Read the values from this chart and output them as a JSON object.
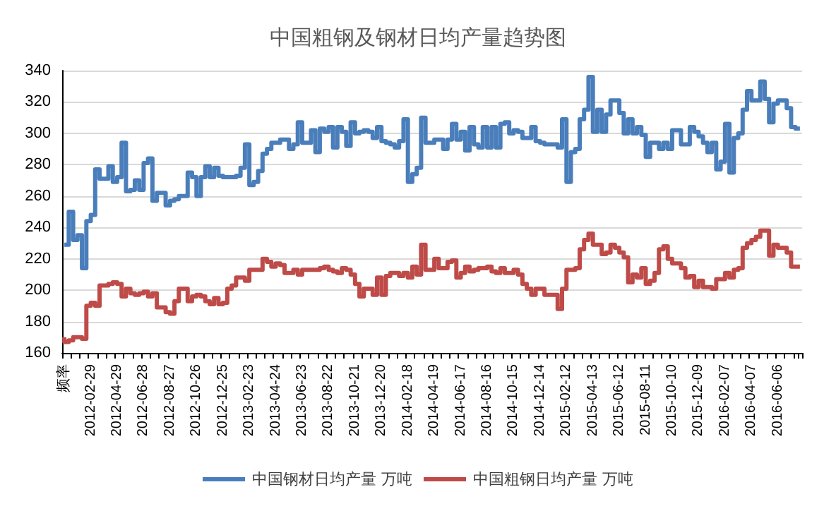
{
  "chart_data": {
    "type": "step",
    "title": "中国粗钢及钢材日均产量趋势图",
    "categories": [
      "频率",
      null,
      null,
      null,
      null,
      null,
      "2012-02-29",
      null,
      null,
      null,
      null,
      null,
      "2012-04-29",
      null,
      null,
      null,
      null,
      null,
      "2012-06-28",
      null,
      null,
      null,
      null,
      null,
      "2012-08-27",
      null,
      null,
      null,
      null,
      null,
      "2012-10-26",
      null,
      null,
      null,
      null,
      null,
      "2012-12-25",
      null,
      null,
      null,
      null,
      null,
      "2013-02-23",
      null,
      null,
      null,
      null,
      null,
      "2013-04-24",
      null,
      null,
      null,
      null,
      null,
      "2013-06-23",
      null,
      null,
      null,
      null,
      null,
      "2013-08-22",
      null,
      null,
      null,
      null,
      null,
      "2013-10-21",
      null,
      null,
      null,
      null,
      null,
      "2013-12-20",
      null,
      null,
      null,
      null,
      null,
      "2014-02-18",
      null,
      null,
      null,
      null,
      null,
      "2014-04-19",
      null,
      null,
      null,
      null,
      null,
      "2014-06-17",
      null,
      null,
      null,
      null,
      null,
      "2014-08-16",
      null,
      null,
      null,
      null,
      null,
      "2014-10-15",
      null,
      null,
      null,
      null,
      null,
      "2014-12-14",
      null,
      null,
      null,
      null,
      null,
      "2015-02-12",
      null,
      null,
      null,
      null,
      null,
      "2015-04-13",
      null,
      null,
      null,
      null,
      null,
      "2015-06-12",
      null,
      null,
      null,
      null,
      null,
      "2015-08-11",
      null,
      null,
      null,
      null,
      null,
      "2015-10-10",
      null,
      null,
      null,
      null,
      null,
      "2015-12-09",
      null,
      null,
      null,
      null,
      null,
      "2016-02-07",
      null,
      null,
      null,
      null,
      null,
      "2016-04-07",
      null,
      null,
      null,
      null,
      null,
      "2016-06-06",
      null,
      null,
      null,
      null,
      null
    ],
    "series": [
      {
        "name": "中国钢材日均产量 万吨",
        "color": "#4a7ebb",
        "values": [
          229,
          229,
          250,
          232,
          235,
          214,
          244,
          248,
          277,
          271,
          271,
          279,
          269,
          272,
          294,
          263,
          264,
          270,
          264,
          281,
          284,
          257,
          262,
          262,
          254,
          257,
          258,
          260,
          260,
          275,
          272,
          260,
          272,
          279,
          272,
          278,
          273,
          272,
          272,
          272,
          273,
          278,
          293,
          267,
          269,
          276,
          287,
          290,
          294,
          294,
          296,
          296,
          290,
          293,
          307,
          294,
          294,
          302,
          288,
          303,
          301,
          304,
          291,
          304,
          301,
          292,
          307,
          300,
          301,
          302,
          301,
          297,
          304,
          295,
          294,
          293,
          291,
          295,
          309,
          269,
          274,
          278,
          310,
          294,
          294,
          296,
          296,
          290,
          296,
          306,
          296,
          301,
          289,
          304,
          293,
          291,
          304,
          291,
          304,
          291,
          306,
          307,
          300,
          302,
          301,
          297,
          297,
          304,
          295,
          294,
          293,
          293,
          293,
          291,
          309,
          269,
          288,
          290,
          309,
          315,
          336,
          301,
          315,
          301,
          312,
          321,
          321,
          313,
          300,
          309,
          300,
          304,
          299,
          285,
          294,
          294,
          290,
          294,
          290,
          302,
          302,
          293,
          293,
          304,
          301,
          298,
          294,
          288,
          294,
          277,
          282,
          306,
          275,
          297,
          300,
          315,
          327,
          321,
          321,
          333,
          322,
          307,
          319,
          321,
          321,
          316,
          304,
          303
        ]
      },
      {
        "name": "中国粗钢日均产量 万吨",
        "color": "#be4b48",
        "values": [
          170,
          167,
          168,
          170,
          170,
          169,
          190,
          192,
          190,
          203,
          203,
          204,
          205,
          204,
          196,
          201,
          198,
          197,
          198,
          199,
          196,
          198,
          189,
          189,
          186,
          185,
          193,
          201,
          201,
          193,
          196,
          197,
          196,
          193,
          191,
          195,
          191,
          192,
          201,
          203,
          208,
          208,
          206,
          213,
          213,
          213,
          220,
          218,
          215,
          217,
          216,
          211,
          211,
          213,
          210,
          213,
          213,
          213,
          213,
          214,
          215,
          213,
          212,
          211,
          214,
          213,
          210,
          204,
          196,
          201,
          201,
          197,
          208,
          197,
          209,
          211,
          211,
          209,
          211,
          208,
          215,
          210,
          229,
          213,
          213,
          220,
          214,
          214,
          218,
          219,
          208,
          211,
          215,
          212,
          213,
          214,
          214,
          215,
          212,
          211,
          214,
          211,
          211,
          213,
          210,
          204,
          201,
          197,
          201,
          201,
          197,
          197,
          197,
          188,
          201,
          213,
          213,
          214,
          226,
          232,
          236,
          229,
          229,
          223,
          224,
          229,
          227,
          224,
          221,
          205,
          210,
          208,
          214,
          204,
          206,
          211,
          226,
          228,
          220,
          217,
          217,
          214,
          208,
          209,
          202,
          206,
          202,
          202,
          201,
          207,
          207,
          211,
          208,
          213,
          214,
          227,
          230,
          232,
          234,
          238,
          238,
          222,
          229,
          227,
          227,
          224,
          215,
          215
        ]
      }
    ],
    "ylim": [
      160,
      340
    ],
    "yticks": [
      160,
      180,
      200,
      220,
      240,
      260,
      280,
      300,
      320,
      340
    ],
    "grid": "y",
    "legend": "bottom",
    "marker": "none",
    "line_style": "solid"
  }
}
